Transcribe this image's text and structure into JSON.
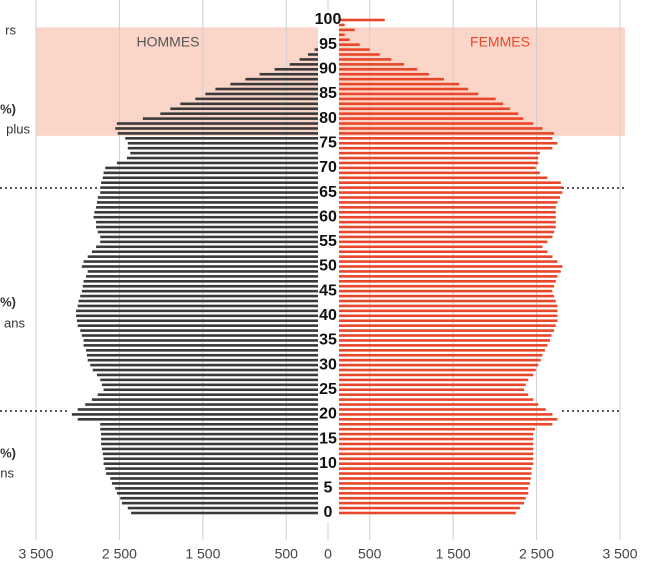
{
  "chart_data": {
    "type": "pyramid",
    "left_label": "HOMMES",
    "right_label": "FEMMES",
    "annotations": [
      "rs",
      "%)",
      "plus",
      "%)",
      "ans",
      "%)",
      "ns"
    ],
    "ylim": [
      0,
      100
    ],
    "yticks": [
      0,
      5,
      10,
      15,
      20,
      25,
      30,
      35,
      40,
      45,
      50,
      55,
      60,
      65,
      70,
      75,
      80,
      85,
      90,
      95,
      100
    ],
    "xlim": [
      -3500,
      3500
    ],
    "xticks": [
      {
        "value": -3500,
        "label": "3 500"
      },
      {
        "value": -2500,
        "label": "2 500"
      },
      {
        "value": -1500,
        "label": "1 500"
      },
      {
        "value": -500,
        "label": "500"
      },
      0,
      {
        "value": 500,
        "label": "500"
      },
      {
        "value": 1500,
        "label": "1 500"
      },
      {
        "value": 2500,
        "label": "2 500"
      },
      {
        "value": 3500,
        "label": "3 500"
      }
    ],
    "highlight": [
      76.5,
      98.5
    ],
    "highlight_color": "#fbd5c8",
    "grid": true,
    "series": [
      {
        "name": "HOMMES",
        "side": "left",
        "color": "#3a3a3a",
        "values": [
          2360,
          2400,
          2470,
          2490,
          2530,
          2550,
          2590,
          2610,
          2660,
          2670,
          2690,
          2690,
          2700,
          2710,
          2720,
          2720,
          2720,
          2730,
          2730,
          3000,
          3070,
          3000,
          2910,
          2830,
          2760,
          2690,
          2710,
          2730,
          2770,
          2820,
          2850,
          2880,
          2890,
          2900,
          2930,
          2930,
          2950,
          2970,
          3000,
          3010,
          3020,
          3020,
          3000,
          2990,
          2970,
          2950,
          2940,
          2930,
          2900,
          2880,
          2950,
          2930,
          2880,
          2830,
          2780,
          2730,
          2730,
          2760,
          2780,
          2780,
          2810,
          2800,
          2780,
          2770,
          2760,
          2730,
          2730,
          2720,
          2700,
          2690,
          2670,
          2530,
          2410,
          2370,
          2400,
          2400,
          2430,
          2520,
          2550,
          2530,
          2220,
          2010,
          1890,
          1770,
          1590,
          1470,
          1350,
          1170,
          990,
          820,
          640,
          460,
          340,
          240,
          160,
          100,
          50,
          20,
          10,
          5,
          5
        ]
      },
      {
        "name": "FEMMES",
        "side": "right",
        "color": "#e8472b",
        "values": [
          2250,
          2300,
          2350,
          2370,
          2400,
          2400,
          2420,
          2430,
          2440,
          2440,
          2460,
          2460,
          2460,
          2460,
          2460,
          2460,
          2460,
          2480,
          2690,
          2750,
          2690,
          2610,
          2520,
          2460,
          2400,
          2350,
          2370,
          2400,
          2460,
          2490,
          2520,
          2550,
          2570,
          2600,
          2630,
          2660,
          2680,
          2710,
          2730,
          2750,
          2750,
          2750,
          2750,
          2730,
          2710,
          2690,
          2710,
          2730,
          2750,
          2790,
          2810,
          2750,
          2690,
          2630,
          2570,
          2630,
          2690,
          2710,
          2730,
          2730,
          2730,
          2730,
          2730,
          2750,
          2780,
          2810,
          2810,
          2790,
          2630,
          2540,
          2490,
          2520,
          2520,
          2540,
          2690,
          2750,
          2690,
          2710,
          2570,
          2460,
          2340,
          2280,
          2180,
          2100,
          2010,
          1800,
          1680,
          1570,
          1390,
          1210,
          1070,
          910,
          760,
          620,
          500,
          380,
          260,
          200,
          320,
          200,
          680
        ]
      }
    ]
  }
}
